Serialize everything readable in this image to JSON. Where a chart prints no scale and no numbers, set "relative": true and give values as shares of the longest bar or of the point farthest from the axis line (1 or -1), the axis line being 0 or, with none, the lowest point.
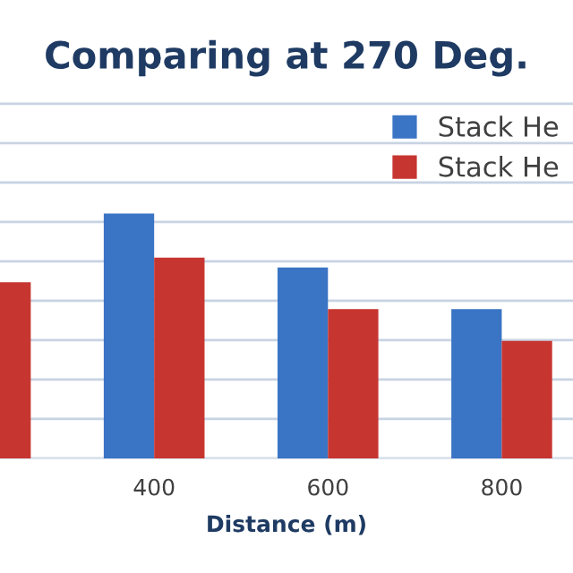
{
  "chart_data": {
    "type": "bar",
    "title": "Comparing at 270 Deg.",
    "xlabel": "Distance (m)",
    "categories": [
      null,
      "400",
      "600",
      "800"
    ],
    "relative": true,
    "grid": "y",
    "legend": "top right",
    "series": [
      {
        "name": "Stack He",
        "color": "#3a74c4",
        "values": [
          null,
          1,
          0.78,
          0.61
        ]
      },
      {
        "name": "Stack He",
        "color": "#c73530",
        "values": [
          0.72,
          0.82,
          0.61,
          0.48
        ]
      }
    ]
  }
}
